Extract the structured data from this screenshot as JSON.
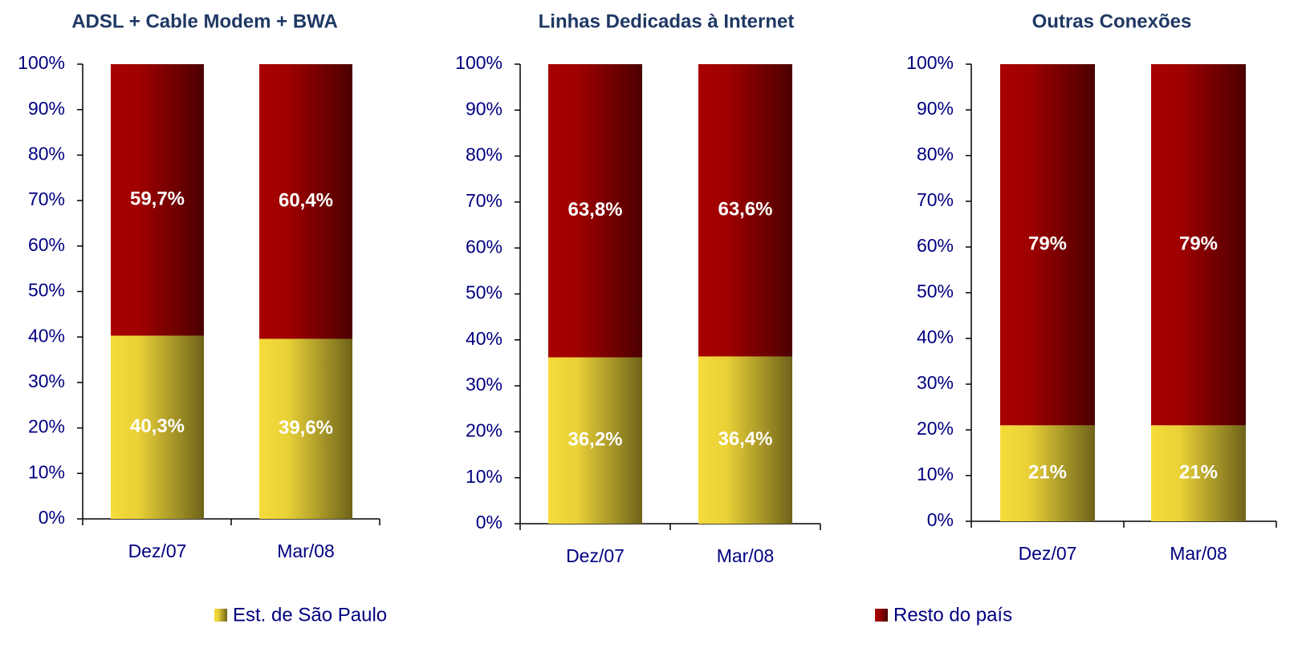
{
  "chart_data": [
    {
      "type": "stacked_bar",
      "title": "ADSL + Cable Modem + BWA",
      "categories": [
        "Dez/07",
        "Mar/08"
      ],
      "series": [
        {
          "name": "Est. de São Paulo",
          "color": "#f5dc3a",
          "values": [
            40.3,
            39.6
          ],
          "value_labels": [
            "40,3%",
            "39,6%"
          ]
        },
        {
          "name": "Resto do país",
          "color": "#a80000",
          "values": [
            59.7,
            60.4
          ],
          "value_labels": [
            "59,7%",
            "60,4%"
          ]
        }
      ],
      "ylim": [
        0,
        100
      ],
      "yticks": [
        {
          "value": 0,
          "label": "0%"
        },
        {
          "value": 10,
          "label": "10%"
        },
        {
          "value": 20,
          "label": "20%"
        },
        {
          "value": 30,
          "label": "30%"
        },
        {
          "value": 40,
          "label": "40%"
        },
        {
          "value": 50,
          "label": "50%"
        },
        {
          "value": 60,
          "label": "60%"
        },
        {
          "value": 70,
          "label": "70%"
        },
        {
          "value": 80,
          "label": "80%"
        },
        {
          "value": 90,
          "label": "90%"
        },
        {
          "value": 100,
          "label": "100%"
        }
      ]
    },
    {
      "type": "stacked_bar",
      "title": "Linhas Dedicadas à Internet",
      "categories": [
        "Dez/07",
        "Mar/08"
      ],
      "series": [
        {
          "color": "#f5dc3a",
          "values": [
            36.2,
            36.4
          ],
          "value_labels": [
            "36,2%",
            "36,4%"
          ]
        },
        {
          "color": "#a80000",
          "values": [
            63.8,
            63.6
          ],
          "value_labels": [
            "63,8%",
            "63,6%"
          ]
        }
      ],
      "ylim": [
        0,
        100
      ],
      "yticks": [
        {
          "value": 0,
          "label": "0%"
        },
        {
          "value": 10,
          "label": "10%"
        },
        {
          "value": 20,
          "label": "20%"
        },
        {
          "value": 30,
          "label": "30%"
        },
        {
          "value": 40,
          "label": "40%"
        },
        {
          "value": 50,
          "label": "50%"
        },
        {
          "value": 60,
          "label": "60%"
        },
        {
          "value": 70,
          "label": "70%"
        },
        {
          "value": 80,
          "label": "80%"
        },
        {
          "value": 90,
          "label": "90%"
        },
        {
          "value": 100,
          "label": "100%"
        }
      ]
    },
    {
      "type": "stacked_bar",
      "title": "Outras Conexões",
      "categories": [
        "Dez/07",
        "Mar/08"
      ],
      "series": [
        {
          "color": "#f5dc3a",
          "values": [
            21,
            21
          ],
          "value_labels": [
            "21%",
            "21%"
          ]
        },
        {
          "color": "#a80000",
          "values": [
            79,
            79
          ],
          "value_labels": [
            "79%",
            "79%"
          ]
        }
      ],
      "ylim": [
        0,
        100
      ],
      "yticks": [
        {
          "value": 0,
          "label": "0%"
        },
        {
          "value": 10,
          "label": "10%"
        },
        {
          "value": 20,
          "label": "20%"
        },
        {
          "value": 30,
          "label": "30%"
        },
        {
          "value": 40,
          "label": "40%"
        },
        {
          "value": 50,
          "label": "50%"
        },
        {
          "value": 60,
          "label": "60%"
        },
        {
          "value": 70,
          "label": "70%"
        },
        {
          "value": 80,
          "label": "80%"
        },
        {
          "value": 90,
          "label": "90%"
        },
        {
          "value": 100,
          "label": "100%"
        }
      ]
    }
  ]
}
